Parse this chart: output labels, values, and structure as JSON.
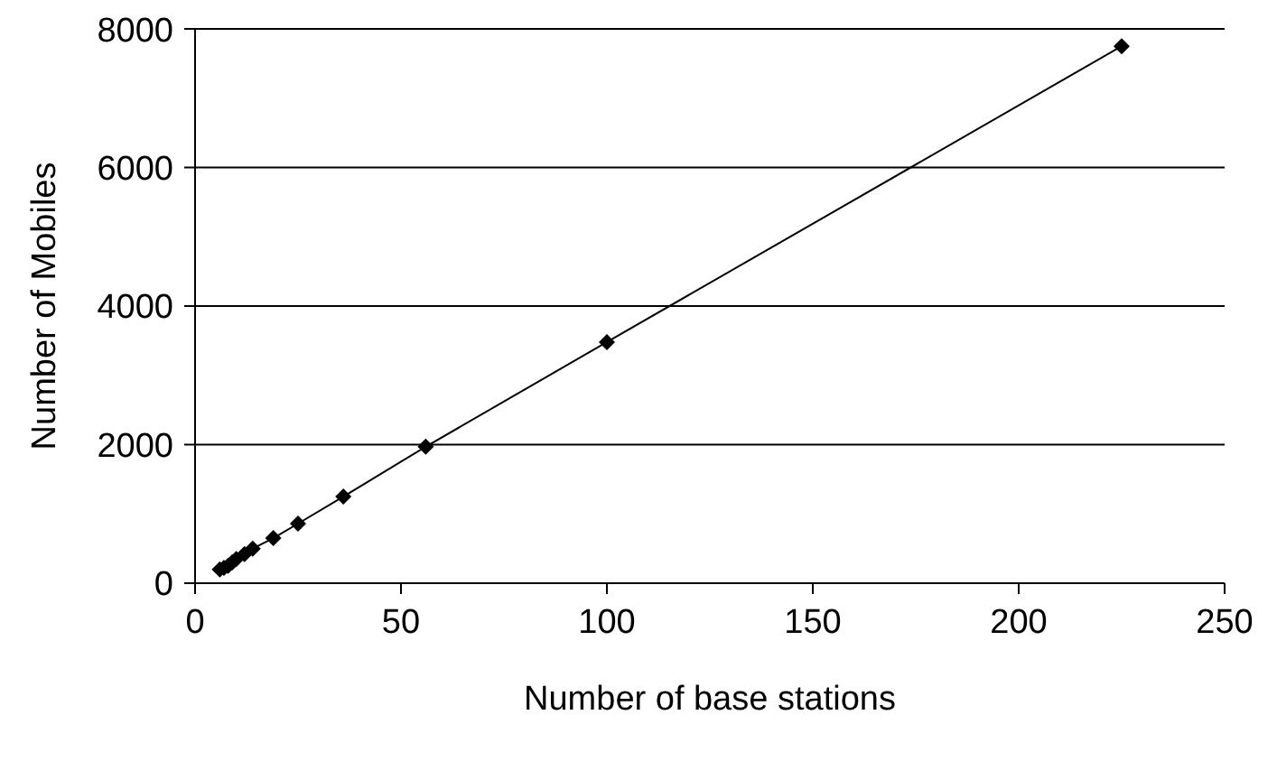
{
  "chart_data": {
    "type": "line",
    "xlabel": "Number of base stations",
    "ylabel": "Number of Mobiles",
    "x": [
      6,
      7,
      8,
      9,
      10,
      12,
      14,
      19,
      25,
      36,
      56,
      100,
      225
    ],
    "series": [
      {
        "color": "#000000",
        "values": [
          200,
          220,
          250,
          300,
          350,
          420,
          500,
          650,
          860,
          1250,
          1970,
          3480,
          7750
        ]
      }
    ],
    "xlim": [
      0,
      250
    ],
    "xticks": [
      0,
      50,
      100,
      150,
      200,
      250
    ],
    "ylim": [
      0,
      8000
    ],
    "yticks": [
      0,
      2000,
      4000,
      6000,
      8000
    ],
    "grid": "y",
    "marker": "diamond",
    "line_style": "solid",
    "legend": false
  }
}
